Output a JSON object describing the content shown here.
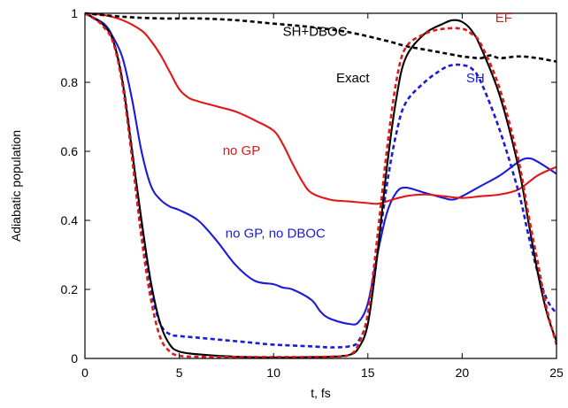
{
  "chart_data": {
    "type": "line",
    "xlabel": "t, fs",
    "ylabel": "Adiabatic population",
    "xlim": [
      0,
      25
    ],
    "ylim": [
      0,
      1
    ],
    "xticks": [
      0,
      5,
      10,
      15,
      20,
      25
    ],
    "xtick_labels": [
      "0",
      "5",
      "10",
      "15",
      "20",
      "25"
    ],
    "yticks": [
      0,
      0.2,
      0.4,
      0.6,
      0.8,
      1
    ],
    "ytick_labels": [
      "0",
      "0.2",
      "0.4",
      "0.6",
      "0.8",
      "1"
    ],
    "grid": false,
    "legend": "none",
    "series": [
      {
        "name": "Exact",
        "color": "#000000",
        "dash": "solid",
        "points": [
          [
            0,
            1.0
          ],
          [
            0.5,
            0.985
          ],
          [
            1,
            0.965
          ],
          [
            1.5,
            0.92
          ],
          [
            2,
            0.8
          ],
          [
            2.5,
            0.6
          ],
          [
            3,
            0.4
          ],
          [
            3.5,
            0.22
          ],
          [
            4,
            0.1
          ],
          [
            4.5,
            0.04
          ],
          [
            5,
            0.02
          ],
          [
            6,
            0.012
          ],
          [
            8,
            0.005
          ],
          [
            10,
            0.003
          ],
          [
            12,
            0.004
          ],
          [
            13,
            0.005
          ],
          [
            14,
            0.01
          ],
          [
            14.5,
            0.03
          ],
          [
            15,
            0.1
          ],
          [
            15.5,
            0.3
          ],
          [
            16,
            0.55
          ],
          [
            16.5,
            0.75
          ],
          [
            17,
            0.87
          ],
          [
            18,
            0.94
          ],
          [
            19,
            0.97
          ],
          [
            19.5,
            0.98
          ],
          [
            20,
            0.975
          ],
          [
            20.5,
            0.95
          ],
          [
            21,
            0.9
          ],
          [
            22,
            0.76
          ],
          [
            23,
            0.55
          ],
          [
            23.5,
            0.4
          ],
          [
            24,
            0.25
          ],
          [
            24.5,
            0.13
          ],
          [
            25,
            0.05
          ]
        ]
      },
      {
        "name": "EF",
        "color": "#e01818",
        "dash": "dash",
        "points": [
          [
            0,
            1.0
          ],
          [
            0.5,
            0.985
          ],
          [
            1,
            0.96
          ],
          [
            1.5,
            0.915
          ],
          [
            2,
            0.79
          ],
          [
            2.5,
            0.58
          ],
          [
            3,
            0.35
          ],
          [
            3.5,
            0.17
          ],
          [
            4,
            0.06
          ],
          [
            4.5,
            0.02
          ],
          [
            5,
            0.008
          ],
          [
            6,
            0.005
          ],
          [
            10,
            0.004
          ],
          [
            13,
            0.005
          ],
          [
            14,
            0.01
          ],
          [
            14.5,
            0.04
          ],
          [
            15,
            0.13
          ],
          [
            15.5,
            0.35
          ],
          [
            16,
            0.6
          ],
          [
            16.5,
            0.8
          ],
          [
            17,
            0.9
          ],
          [
            18,
            0.94
          ],
          [
            19,
            0.955
          ],
          [
            20,
            0.955
          ],
          [
            20.5,
            0.94
          ],
          [
            21,
            0.91
          ],
          [
            22,
            0.78
          ],
          [
            23,
            0.57
          ],
          [
            23.5,
            0.42
          ],
          [
            24,
            0.28
          ],
          [
            24.5,
            0.14
          ],
          [
            25,
            0.04
          ]
        ]
      },
      {
        "name": "SH",
        "color": "#1a1ad8",
        "dash": "dash",
        "points": [
          [
            0,
            1.0
          ],
          [
            1,
            0.965
          ],
          [
            1.5,
            0.92
          ],
          [
            2,
            0.8
          ],
          [
            2.5,
            0.6
          ],
          [
            3,
            0.38
          ],
          [
            3.5,
            0.2
          ],
          [
            4,
            0.1
          ],
          [
            4.5,
            0.07
          ],
          [
            5,
            0.065
          ],
          [
            6,
            0.06
          ],
          [
            7,
            0.055
          ],
          [
            8,
            0.05
          ],
          [
            9,
            0.045
          ],
          [
            10,
            0.04
          ],
          [
            12,
            0.035
          ],
          [
            13,
            0.032
          ],
          [
            14,
            0.035
          ],
          [
            14.5,
            0.05
          ],
          [
            15,
            0.12
          ],
          [
            15.5,
            0.3
          ],
          [
            16,
            0.5
          ],
          [
            16.5,
            0.65
          ],
          [
            17,
            0.74
          ],
          [
            18,
            0.8
          ],
          [
            19,
            0.84
          ],
          [
            19.5,
            0.85
          ],
          [
            20,
            0.85
          ],
          [
            20.5,
            0.84
          ],
          [
            21,
            0.8
          ],
          [
            22,
            0.66
          ],
          [
            23,
            0.48
          ],
          [
            23.5,
            0.36
          ],
          [
            24,
            0.25
          ],
          [
            24.5,
            0.17
          ],
          [
            25,
            0.13
          ]
        ]
      },
      {
        "name": "SH+DBOC",
        "color": "#000000",
        "dash": "dash",
        "points": [
          [
            0,
            1.0
          ],
          [
            2,
            0.99
          ],
          [
            4,
            0.985
          ],
          [
            6,
            0.985
          ],
          [
            8,
            0.98
          ],
          [
            10,
            0.97
          ],
          [
            12,
            0.96
          ],
          [
            14,
            0.945
          ],
          [
            16,
            0.92
          ],
          [
            17,
            0.905
          ],
          [
            18,
            0.895
          ],
          [
            19,
            0.885
          ],
          [
            20,
            0.875
          ],
          [
            20.5,
            0.872
          ],
          [
            21,
            0.87
          ],
          [
            21.5,
            0.878
          ],
          [
            22,
            0.87
          ],
          [
            23,
            0.875
          ],
          [
            24,
            0.87
          ],
          [
            25,
            0.86
          ]
        ]
      },
      {
        "name": "no GP",
        "color": "#e01818",
        "dash": "solid",
        "points": [
          [
            0,
            1.0
          ],
          [
            1,
            0.995
          ],
          [
            2,
            0.98
          ],
          [
            3,
            0.95
          ],
          [
            3.5,
            0.92
          ],
          [
            4,
            0.88
          ],
          [
            4.5,
            0.83
          ],
          [
            5,
            0.78
          ],
          [
            5.5,
            0.755
          ],
          [
            6,
            0.745
          ],
          [
            7,
            0.73
          ],
          [
            8,
            0.715
          ],
          [
            9,
            0.69
          ],
          [
            10,
            0.66
          ],
          [
            10.5,
            0.62
          ],
          [
            11,
            0.565
          ],
          [
            11.5,
            0.515
          ],
          [
            12,
            0.48
          ],
          [
            13,
            0.46
          ],
          [
            14,
            0.455
          ],
          [
            15,
            0.45
          ],
          [
            15.5,
            0.448
          ],
          [
            16,
            0.455
          ],
          [
            17,
            0.47
          ],
          [
            18,
            0.475
          ],
          [
            19,
            0.47
          ],
          [
            20,
            0.465
          ],
          [
            21,
            0.47
          ],
          [
            22,
            0.475
          ],
          [
            23,
            0.49
          ],
          [
            24,
            0.53
          ],
          [
            25,
            0.555
          ]
        ]
      },
      {
        "name": "no GP, no DBOC",
        "color": "#1a1ad8",
        "dash": "solid",
        "points": [
          [
            0,
            1.0
          ],
          [
            1,
            0.97
          ],
          [
            1.5,
            0.93
          ],
          [
            2,
            0.87
          ],
          [
            2.5,
            0.75
          ],
          [
            3,
            0.6
          ],
          [
            3.5,
            0.5
          ],
          [
            4,
            0.46
          ],
          [
            4.5,
            0.44
          ],
          [
            5,
            0.43
          ],
          [
            6,
            0.4
          ],
          [
            7,
            0.34
          ],
          [
            8,
            0.27
          ],
          [
            9,
            0.225
          ],
          [
            10,
            0.215
          ],
          [
            10.5,
            0.205
          ],
          [
            11,
            0.2
          ],
          [
            12,
            0.17
          ],
          [
            12.5,
            0.135
          ],
          [
            13,
            0.115
          ],
          [
            14,
            0.1
          ],
          [
            14.5,
            0.105
          ],
          [
            15,
            0.16
          ],
          [
            15.5,
            0.3
          ],
          [
            16,
            0.42
          ],
          [
            16.5,
            0.48
          ],
          [
            17,
            0.495
          ],
          [
            18,
            0.48
          ],
          [
            19,
            0.465
          ],
          [
            19.5,
            0.46
          ],
          [
            20,
            0.47
          ],
          [
            21,
            0.5
          ],
          [
            22,
            0.53
          ],
          [
            23,
            0.57
          ],
          [
            23.5,
            0.58
          ],
          [
            24,
            0.57
          ],
          [
            25,
            0.535
          ]
        ]
      }
    ],
    "annotations": [
      {
        "text": "SH+DBOC",
        "x": 12.2,
        "y": 0.935,
        "color": "#000000"
      },
      {
        "text": "Exact",
        "x": 14.2,
        "y": 0.8,
        "color": "#000000"
      },
      {
        "text": "EF",
        "x": 22.2,
        "y": 0.975,
        "color": "#e01818"
      },
      {
        "text": "SH",
        "x": 20.7,
        "y": 0.8,
        "color": "#1a1ad8"
      },
      {
        "text": "no GP",
        "x": 8.3,
        "y": 0.59,
        "color": "#e01818"
      },
      {
        "text": "no GP, no DBOC",
        "x": 10.1,
        "y": 0.35,
        "color": "#1a1ad8"
      }
    ]
  }
}
